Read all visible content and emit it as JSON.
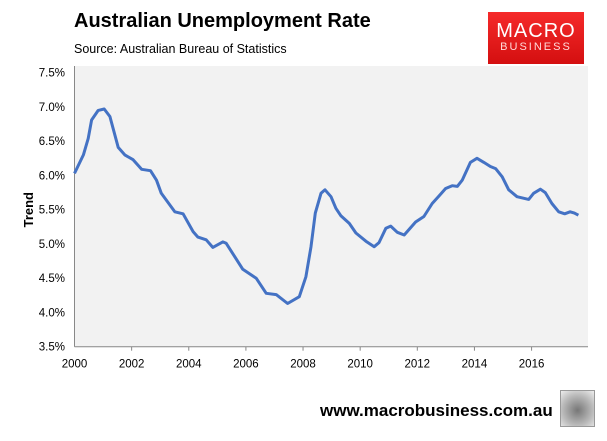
{
  "chart_data": {
    "type": "line",
    "title": "Australian Unemployment Rate",
    "subtitle": "Source: Australian Bureau of Statistics",
    "xlabel": "",
    "ylabel": "Trend",
    "xlim": [
      2000,
      2017.8
    ],
    "ylim": [
      3.5,
      7.5
    ],
    "xticks": [
      2000,
      2002,
      2004,
      2006,
      2008,
      2010,
      2012,
      2014,
      2016
    ],
    "xtick_labels": [
      "2000",
      "2002",
      "2004",
      "2006",
      "2008",
      "2010",
      "2012",
      "2014",
      "2016"
    ],
    "yticks": [
      3.5,
      4.0,
      4.5,
      5.0,
      5.5,
      6.0,
      6.5,
      7.0,
      7.5
    ],
    "ytick_labels": [
      "3.5%",
      "4.0%",
      "4.5%",
      "5.0%",
      "5.5%",
      "6.0%",
      "6.5%",
      "7.0%",
      "7.5%"
    ],
    "grid": false,
    "legend": "none",
    "series": [
      {
        "name": "Trend",
        "color": "#4472c4",
        "x": [
          2000.0,
          2000.31,
          2000.48,
          2000.6,
          2000.83,
          2001.04,
          2001.24,
          2001.53,
          2001.76,
          2002.05,
          2002.35,
          2002.66,
          2002.87,
          2003.04,
          2003.51,
          2003.8,
          2004.15,
          2004.32,
          2004.61,
          2004.84,
          2005.19,
          2005.31,
          2005.89,
          2006.36,
          2006.71,
          2007.06,
          2007.46,
          2007.87,
          2008.1,
          2008.28,
          2008.43,
          2008.63,
          2008.77,
          2008.98,
          2009.15,
          2009.33,
          2009.62,
          2009.85,
          2010.2,
          2010.49,
          2010.66,
          2010.9,
          2011.07,
          2011.3,
          2011.54,
          2011.94,
          2012.23,
          2012.52,
          2012.76,
          2012.99,
          2013.22,
          2013.4,
          2013.57,
          2013.86,
          2014.09,
          2014.33,
          2014.56,
          2014.74,
          2014.97,
          2015.2,
          2015.49,
          2015.9,
          2016.07,
          2016.31,
          2016.48,
          2016.71,
          2016.95,
          2017.16,
          2017.35,
          2017.5,
          2017.64
        ],
        "y": [
          6.03,
          6.3,
          6.54,
          6.81,
          6.95,
          6.97,
          6.86,
          6.41,
          6.3,
          6.23,
          6.09,
          6.07,
          5.93,
          5.74,
          5.47,
          5.44,
          5.18,
          5.1,
          5.06,
          4.95,
          5.03,
          5.01,
          4.63,
          4.5,
          4.28,
          4.26,
          4.13,
          4.23,
          4.52,
          4.96,
          5.45,
          5.74,
          5.79,
          5.69,
          5.52,
          5.41,
          5.3,
          5.16,
          5.04,
          4.96,
          5.02,
          5.23,
          5.26,
          5.17,
          5.13,
          5.32,
          5.4,
          5.59,
          5.7,
          5.81,
          5.85,
          5.84,
          5.93,
          6.19,
          6.25,
          6.19,
          6.13,
          6.1,
          5.98,
          5.79,
          5.69,
          5.65,
          5.74,
          5.8,
          5.75,
          5.59,
          5.47,
          5.44,
          5.47,
          5.45,
          5.42
        ]
      }
    ]
  },
  "branding": {
    "logo_line1": "MACRO",
    "logo_line2": "BUSINESS",
    "url": "www.macrobusiness.com.au"
  }
}
